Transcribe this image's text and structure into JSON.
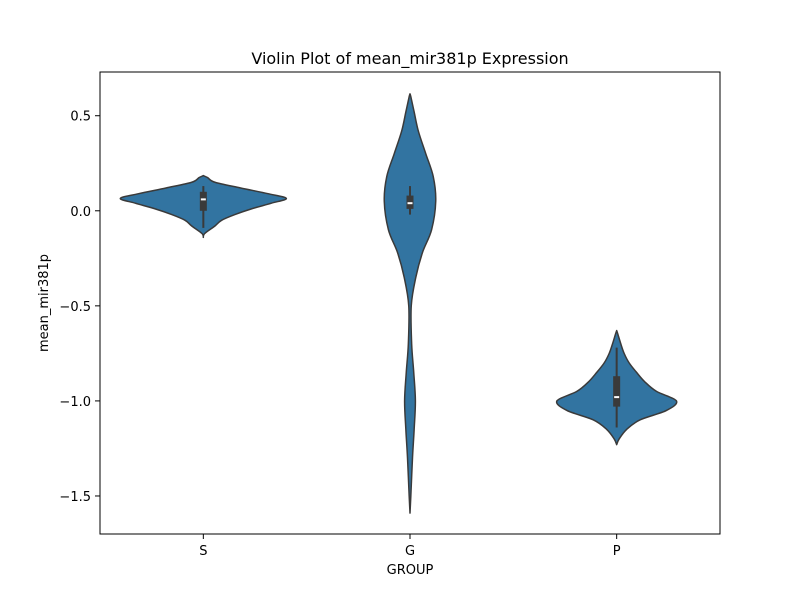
{
  "chart_data": {
    "type": "violin",
    "title": "Violin Plot of mean_mir381p Expression",
    "xlabel": "GROUP",
    "ylabel": "mean_mir381p",
    "categories": [
      "S",
      "G",
      "P"
    ],
    "ylim": [
      -1.7,
      0.73
    ],
    "yticks": [
      -1.5,
      -1.0,
      -0.5,
      0.0,
      0.5
    ],
    "ytick_labels": [
      "−1.5",
      "−1.0",
      "−0.5",
      "0.0",
      "0.5"
    ],
    "grid": false,
    "colors": {
      "fill": "#3274a1",
      "edge": "#3a3a3a",
      "box": "#3a3a3a",
      "median": "#ffffff"
    },
    "violins": [
      {
        "category": "S",
        "profile": [
          [
            -0.14,
            0.0
          ],
          [
            -0.12,
            0.015
          ],
          [
            -0.08,
            0.14
          ],
          [
            -0.05,
            0.22
          ],
          [
            -0.02,
            0.38
          ],
          [
            0.01,
            0.58
          ],
          [
            0.04,
            0.82
          ],
          [
            0.065,
            1.0
          ],
          [
            0.09,
            0.78
          ],
          [
            0.12,
            0.45
          ],
          [
            0.15,
            0.14
          ],
          [
            0.175,
            0.05
          ],
          [
            0.185,
            0.0
          ]
        ],
        "whisker": [
          -0.09,
          0.13
        ],
        "q1": 0.0,
        "q3": 0.1,
        "median": 0.06
      },
      {
        "category": "G",
        "profile": [
          [
            -1.59,
            0.0
          ],
          [
            -1.5,
            0.01
          ],
          [
            -1.3,
            0.03
          ],
          [
            -1.15,
            0.05
          ],
          [
            -1.0,
            0.065
          ],
          [
            -0.85,
            0.045
          ],
          [
            -0.7,
            0.02
          ],
          [
            -0.5,
            0.015
          ],
          [
            -0.35,
            0.07
          ],
          [
            -0.22,
            0.15
          ],
          [
            -0.1,
            0.26
          ],
          [
            0.05,
            0.31
          ],
          [
            0.18,
            0.28
          ],
          [
            0.3,
            0.19
          ],
          [
            0.42,
            0.1
          ],
          [
            0.52,
            0.05
          ],
          [
            0.6,
            0.01
          ],
          [
            0.615,
            0.0
          ]
        ],
        "whisker": [
          -0.02,
          0.13
        ],
        "q1": 0.01,
        "q3": 0.08,
        "median": 0.04
      },
      {
        "category": "P",
        "profile": [
          [
            -1.23,
            0.0
          ],
          [
            -1.2,
            0.03
          ],
          [
            -1.15,
            0.12
          ],
          [
            -1.1,
            0.28
          ],
          [
            -1.05,
            0.6
          ],
          [
            -1.0,
            0.72
          ],
          [
            -0.95,
            0.48
          ],
          [
            -0.9,
            0.34
          ],
          [
            -0.85,
            0.24
          ],
          [
            -0.8,
            0.15
          ],
          [
            -0.75,
            0.09
          ],
          [
            -0.7,
            0.05
          ],
          [
            -0.65,
            0.015
          ],
          [
            -0.63,
            0.0
          ]
        ],
        "whisker": [
          -1.14,
          -0.72
        ],
        "q1": -1.03,
        "q3": -0.87,
        "median": -0.98
      }
    ]
  }
}
